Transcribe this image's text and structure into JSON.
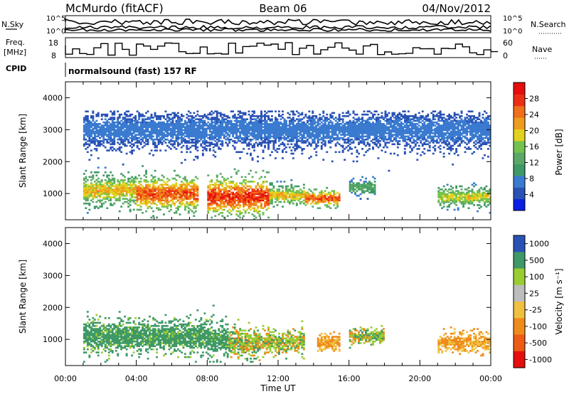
{
  "header": {
    "title": "McMurdo (fitACF)",
    "beam": "Beam 06",
    "date": "04/Nov/2012"
  },
  "top_panels": {
    "sky_label": "N.Sky",
    "search_label": "N.Search",
    "count_ticks": [
      "10^5",
      "10^0"
    ],
    "freq_label_line1": "Freq.",
    "freq_label_line2": "[MHz]",
    "freq_ticks": [
      "18",
      "8"
    ],
    "nave_label": "Nave",
    "nave_ticks": [
      "60",
      "0"
    ],
    "cpid_label": "CPID",
    "cpid_text": "normalsound (fast) 157 RF"
  },
  "colors": {
    "power": [
      "#0b1ee6",
      "#2a52b5",
      "#3a7bd0",
      "#3f9966",
      "#5aa868",
      "#73c24f",
      "#e2d21f",
      "#ee9c1e",
      "#f06f1a",
      "#ec2f14",
      "#e60d0d"
    ],
    "velocity": [
      "#e60d0d",
      "#ee5b14",
      "#ef8b1b",
      "#f0c040",
      "#bdbdbd",
      "#9acd32",
      "#3f9966",
      "#2a52b5"
    ],
    "ground_scatter": "#8c8c8c"
  },
  "chart_data": [
    {
      "type": "heatmap",
      "name": "power",
      "ylabel": "Slant Range [km]",
      "ylim": [
        180,
        4500
      ],
      "yticks": [
        "1000",
        "2000",
        "3000",
        "4000"
      ],
      "xlim": [
        0,
        24
      ],
      "xticks": [
        "00:00",
        "04:00",
        "08:00",
        "12:00",
        "16:00",
        "20:00",
        "00:00"
      ],
      "colorbar_label": "Power [dB]",
      "colorbar_ticks": [
        "4",
        "8",
        "12",
        "16",
        "20",
        "24",
        "28"
      ],
      "colorbar_range": [
        0,
        30
      ],
      "features": [
        {
          "t0": 1.0,
          "t1": 4.0,
          "r_center": 1100,
          "r_width": 450,
          "peak_db": 22
        },
        {
          "t0": 4.0,
          "t1": 7.5,
          "r_center": 1000,
          "r_width": 500,
          "peak_db": 28
        },
        {
          "t0": 8.0,
          "t1": 11.5,
          "r_center": 900,
          "r_width": 550,
          "peak_db": 30
        },
        {
          "t0": 11.5,
          "t1": 13.5,
          "r_center": 950,
          "r_width": 300,
          "peak_db": 22
        },
        {
          "t0": 13.5,
          "t1": 15.5,
          "r_center": 850,
          "r_width": 250,
          "peak_db": 28
        },
        {
          "t0": 16.0,
          "t1": 17.5,
          "r_center": 1200,
          "r_width": 250,
          "peak_db": 14
        },
        {
          "t0": 21.0,
          "t1": 24.0,
          "r_center": 900,
          "r_width": 300,
          "peak_db": 20
        },
        {
          "t0": 1.0,
          "t1": 24.0,
          "r_center": 3000,
          "r_width": 600,
          "peak_db": 8
        }
      ]
    },
    {
      "type": "heatmap",
      "name": "velocity",
      "ylabel": "Slant Range [km]",
      "ylim": [
        180,
        4500
      ],
      "yticks": [
        "1000",
        "2000",
        "3000",
        "4000"
      ],
      "xlim": [
        0,
        24
      ],
      "xticks": [
        "00:00",
        "04:00",
        "08:00",
        "12:00",
        "16:00",
        "20:00",
        "00:00"
      ],
      "xlabel": "Time UT",
      "colorbar_label": "Velocity [m s⁻¹]",
      "colorbar_ticks": [
        "1000",
        "500",
        "100",
        "25",
        "-25",
        "-100",
        "-500",
        "-1000"
      ],
      "features": [
        {
          "t0": 1.0,
          "t1": 8.0,
          "r_center": 1100,
          "r_width": 500,
          "class": "ground"
        },
        {
          "t0": 8.0,
          "t1": 9.2,
          "r_center": 1000,
          "r_width": 500,
          "class": "ground"
        },
        {
          "t0": 9.2,
          "t1": 11.0,
          "r_center": 900,
          "r_width": 450,
          "class": "mixed"
        },
        {
          "t0": 11.0,
          "t1": 13.5,
          "r_center": 900,
          "r_width": 350,
          "class": "mixed"
        },
        {
          "t0": 14.2,
          "t1": 15.5,
          "r_center": 900,
          "r_width": 250,
          "class": "negative"
        },
        {
          "t0": 16.0,
          "t1": 18.0,
          "r_center": 1100,
          "r_width": 250,
          "class": "mixed"
        },
        {
          "t0": 21.0,
          "t1": 24.0,
          "r_center": 900,
          "r_width": 300,
          "class": "negative"
        }
      ]
    }
  ]
}
